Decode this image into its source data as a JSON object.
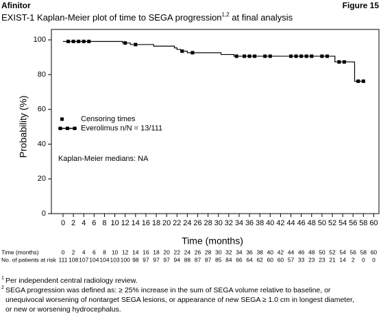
{
  "header": {
    "brand": "Afinitor",
    "figure": "Figure 15"
  },
  "chart_data": {
    "type": "step",
    "title": "EXIST-1 Kaplan-Meier plot of time to SEGA progression",
    "title_sup": "1,2",
    "title_end": " at final analysis",
    "x_label": "Time (months)",
    "y_label": "Probability (%)",
    "annotation": "Kaplan-Meier medians: NA",
    "xlim": [
      -2.25,
      61
    ],
    "ylim": [
      0,
      106
    ],
    "xticks": [
      0,
      2,
      4,
      6,
      8,
      10,
      12,
      14,
      16,
      18,
      20,
      22,
      24,
      26,
      28,
      30,
      32,
      34,
      36,
      38,
      40,
      42,
      44,
      46,
      48,
      50,
      52,
      54,
      56,
      58,
      60
    ],
    "yticks": [
      0,
      20,
      40,
      60,
      80,
      100
    ],
    "series": [
      {
        "name": "Censoring times",
        "color": "#000000",
        "marker": "square",
        "x": [
          1,
          2,
          3,
          4,
          5,
          12,
          14,
          23,
          25,
          33.5,
          35,
          36,
          37,
          39,
          40,
          44,
          45,
          46,
          47,
          48,
          50,
          51,
          53.3,
          54.3,
          57,
          58
        ],
        "values": [
          99.1,
          99.1,
          99.1,
          99.1,
          99.1,
          98.2,
          97.3,
          93.5,
          92.6,
          90.6,
          90.6,
          90.6,
          90.6,
          90.6,
          90.6,
          90.6,
          90.6,
          90.6,
          90.6,
          90.6,
          90.6,
          90.6,
          87.3,
          87.3,
          76.2,
          76.2
        ]
      },
      {
        "name": "Everolimus n/N = 13/111",
        "color": "#000000",
        "x": [
          0,
          11.5,
          11.5,
          13,
          13,
          17.5,
          17.5,
          21.5,
          21.5,
          22,
          22,
          22.7,
          22.7,
          24,
          24,
          30.5,
          30.5,
          33,
          33,
          52.5,
          52.5,
          56.3,
          56.3,
          58.3
        ],
        "values": [
          99.1,
          99.1,
          98.2,
          98.2,
          97.3,
          97.3,
          96.4,
          96.4,
          95.4,
          95.4,
          94.5,
          94.5,
          93.5,
          93.5,
          92.6,
          92.6,
          91.6,
          91.6,
          90.6,
          90.6,
          87.3,
          87.3,
          76.2,
          76.2
        ]
      }
    ],
    "risk_table": {
      "time_label": "Time (months)",
      "risk_label": "No. of patients at risk",
      "times": [
        0,
        2,
        4,
        6,
        8,
        10,
        12,
        14,
        16,
        18,
        20,
        22,
        24,
        26,
        28,
        30,
        32,
        34,
        36,
        38,
        40,
        42,
        44,
        46,
        48,
        50,
        52,
        54,
        56,
        58,
        60
      ],
      "at_risk": [
        111,
        108,
        107,
        104,
        104,
        103,
        100,
        98,
        97,
        97,
        97,
        94,
        88,
        87,
        87,
        85,
        84,
        66,
        64,
        62,
        60,
        60,
        57,
        33,
        23,
        23,
        21,
        14,
        2,
        0,
        0
      ]
    }
  },
  "footnotes": [
    {
      "mark": "1",
      "lines": [
        "Per independent central radiology review."
      ]
    },
    {
      "mark": "2",
      "lines": [
        "SEGA progression was defined as: ≥ 25% increase in the sum of SEGA volume relative to baseline, or",
        "unequivocal worsening of nontarget SEGA lesions, or appearance of new SEGA ≥ 1.0 cm in longest diameter,",
        "or new or worsening hydrocephalus."
      ]
    }
  ]
}
